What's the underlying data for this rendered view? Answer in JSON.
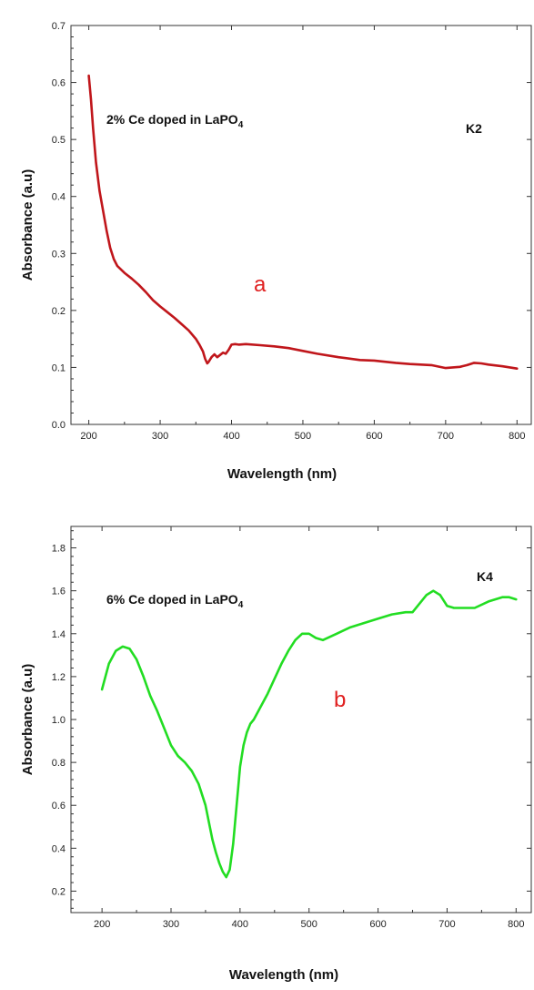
{
  "chart_data": [
    {
      "type": "line",
      "xlabel": "Wavelength (nm)",
      "ylabel": "Absorbance (a.u)",
      "xlim": [
        175,
        820
      ],
      "ylim": [
        0.0,
        0.7
      ],
      "x_ticks": [
        200,
        300,
        400,
        500,
        600,
        700,
        800
      ],
      "y_ticks": [
        0.0,
        0.1,
        0.2,
        0.3,
        0.4,
        0.5,
        0.6,
        0.7
      ],
      "x_tick_labels": [
        "200",
        "300",
        "400",
        "500",
        "600",
        "700",
        "800"
      ],
      "y_tick_labels": [
        "0.0",
        "0.1",
        "0.2",
        "0.3",
        "0.4",
        "0.5",
        "0.6",
        "0.7"
      ],
      "sample_label": "2% Ce doped in LaPO",
      "sample_subscript": "4",
      "sample_code": "K2",
      "panel_letter": "a",
      "line_color": "#c0161b",
      "letter_color": "#e02020",
      "grid": false,
      "series": [
        {
          "x": [
            200,
            203,
            206,
            210,
            215,
            220,
            225,
            230,
            235,
            240,
            250,
            260,
            270,
            280,
            290,
            300,
            310,
            320,
            330,
            340,
            350,
            355,
            360,
            363,
            366,
            368,
            372,
            376,
            380,
            384,
            388,
            392,
            396,
            400,
            405,
            410,
            420,
            440,
            460,
            480,
            500,
            520,
            550,
            580,
            600,
            630,
            650,
            680,
            700,
            710,
            720,
            730,
            740,
            750,
            760,
            780,
            800
          ],
          "y": [
            0.612,
            0.57,
            0.52,
            0.46,
            0.41,
            0.375,
            0.34,
            0.31,
            0.29,
            0.278,
            0.266,
            0.256,
            0.245,
            0.232,
            0.218,
            0.207,
            0.197,
            0.187,
            0.176,
            0.165,
            0.15,
            0.14,
            0.128,
            0.115,
            0.107,
            0.11,
            0.118,
            0.123,
            0.118,
            0.122,
            0.126,
            0.124,
            0.131,
            0.14,
            0.141,
            0.14,
            0.141,
            0.139,
            0.137,
            0.134,
            0.129,
            0.124,
            0.118,
            0.113,
            0.112,
            0.108,
            0.106,
            0.104,
            0.099,
            0.1,
            0.101,
            0.104,
            0.108,
            0.107,
            0.105,
            0.102,
            0.098
          ]
        }
      ]
    },
    {
      "type": "line",
      "xlabel": "Wavelength (nm)",
      "ylabel": "Absorbance (a.u)",
      "xlim": [
        155,
        822
      ],
      "ylim": [
        0.1,
        1.9
      ],
      "x_ticks": [
        200,
        300,
        400,
        500,
        600,
        700,
        800
      ],
      "y_ticks": [
        0.2,
        0.4,
        0.6,
        0.8,
        1.0,
        1.2,
        1.4,
        1.6,
        1.8
      ],
      "x_tick_labels": [
        "200",
        "300",
        "400",
        "500",
        "600",
        "700",
        "800"
      ],
      "y_tick_labels": [
        "0.2",
        "0.4",
        "0.6",
        "0.8",
        "1.0",
        "1.2",
        "1.4",
        "1.6",
        "1.8"
      ],
      "sample_label": "6% Ce doped in LaPO",
      "sample_subscript": "4",
      "sample_code": "K4",
      "panel_letter": "b",
      "line_color": "#22dd22",
      "letter_color": "#e02020",
      "grid": false,
      "series": [
        {
          "x": [
            200,
            210,
            220,
            230,
            240,
            250,
            260,
            270,
            280,
            290,
            300,
            310,
            320,
            330,
            340,
            350,
            355,
            360,
            365,
            370,
            375,
            380,
            385,
            390,
            395,
            400,
            405,
            410,
            415,
            420,
            430,
            440,
            450,
            460,
            470,
            480,
            490,
            500,
            510,
            520,
            540,
            560,
            580,
            600,
            620,
            640,
            650,
            660,
            670,
            680,
            690,
            700,
            710,
            720,
            740,
            760,
            780,
            790,
            800
          ],
          "y": [
            1.14,
            1.26,
            1.32,
            1.34,
            1.33,
            1.28,
            1.2,
            1.11,
            1.04,
            0.96,
            0.88,
            0.83,
            0.8,
            0.76,
            0.7,
            0.6,
            0.52,
            0.44,
            0.38,
            0.33,
            0.29,
            0.265,
            0.3,
            0.42,
            0.6,
            0.78,
            0.88,
            0.94,
            0.98,
            1.0,
            1.06,
            1.12,
            1.19,
            1.26,
            1.32,
            1.37,
            1.4,
            1.4,
            1.38,
            1.37,
            1.4,
            1.43,
            1.45,
            1.47,
            1.49,
            1.5,
            1.5,
            1.54,
            1.58,
            1.6,
            1.58,
            1.53,
            1.52,
            1.52,
            1.52,
            1.55,
            1.57,
            1.57,
            1.56
          ]
        }
      ]
    }
  ]
}
